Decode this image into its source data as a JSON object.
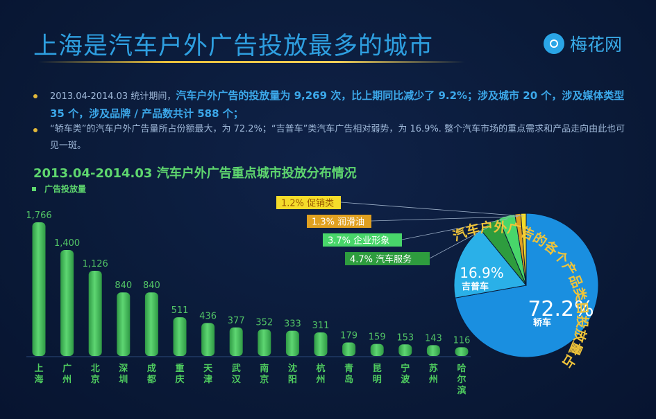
{
  "page": {
    "title": "上海是汽车户外广告投放最多的城市",
    "brand": "梅花网"
  },
  "summary": {
    "bullet1_prefix": "2013.04-2014.03 统计期间，",
    "bullet1_bold": "汽车户外广告的投放量为 9,269 次，比上期同比减少了 9.2%；涉及城市 20 个，涉及媒体类型 35 个，涉及品牌 / 产品数共计 588 个；",
    "bullet2": "“轿车类”的汽车户外广告量所占份额最大，为 72.2%；“吉普车”类汽车广告相对弱势，为 16.9%. 整个汽车市场的重点需求和产品走向由此也可见一斑。"
  },
  "chart_data": [
    {
      "type": "bar",
      "title": "2013.04-2014.03 汽车户外广告重点城市投放分布情况",
      "series": [
        {
          "name": "广告投放量",
          "values": [
            1766,
            1400,
            1126,
            840,
            840,
            511,
            436,
            377,
            352,
            333,
            311,
            179,
            159,
            153,
            143,
            116
          ]
        }
      ],
      "categories": [
        "上海",
        "广州",
        "北京",
        "深圳",
        "成都",
        "重庆",
        "天津",
        "武汉",
        "南京",
        "沈阳",
        "杭州",
        "青岛",
        "昆明",
        "宁波",
        "苏州",
        "哈尔滨"
      ],
      "value_labels": [
        "1,766",
        "1,400",
        "1,126",
        "840",
        "840",
        "511",
        "436",
        "377",
        "352",
        "333",
        "311",
        "179",
        "159",
        "153",
        "143",
        "116"
      ],
      "color": "#4cc860"
    },
    {
      "type": "pie",
      "title": "汽车户外广告的各个产品类目投放量占比",
      "slices": [
        {
          "name": "轿车",
          "value": 72.2,
          "label": "72.2%",
          "color": "#1a8fe0"
        },
        {
          "name": "吉普车",
          "value": 16.9,
          "label": "16.9%",
          "color": "#2ab0e8"
        },
        {
          "name": "汽车服务",
          "value": 4.7,
          "label": "4.7%",
          "color": "#2e9c3e"
        },
        {
          "name": "企业形象",
          "value": 3.7,
          "label": "3.7%",
          "color": "#48d66a"
        },
        {
          "name": "润滑油",
          "value": 1.3,
          "label": "1.3%",
          "color": "#e0a020"
        },
        {
          "name": "促销类",
          "value": 1.2,
          "label": "1.2%",
          "color": "#f5dc2a"
        }
      ]
    }
  ]
}
